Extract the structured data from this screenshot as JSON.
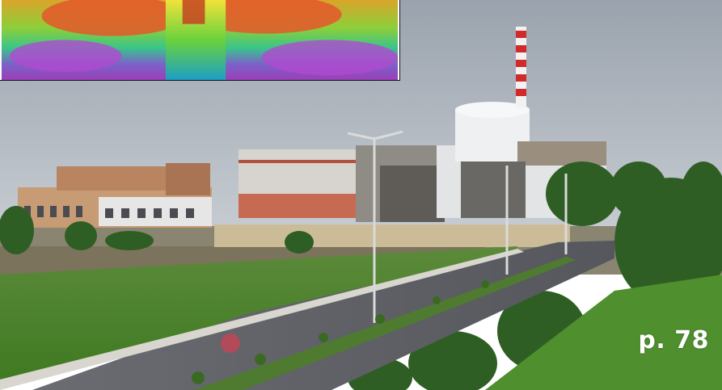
{
  "page_label": "p. 78",
  "colors": {
    "sky": "#b9c1c9",
    "grass": "#4f8f2e",
    "road": "#5d5f66",
    "chimney_red": "#d12a2a",
    "dome": "#e9ecef"
  },
  "icons": {
    "thermal_inset": "thermal-image-inset",
    "photo": "nuclear-power-plant-photo"
  }
}
